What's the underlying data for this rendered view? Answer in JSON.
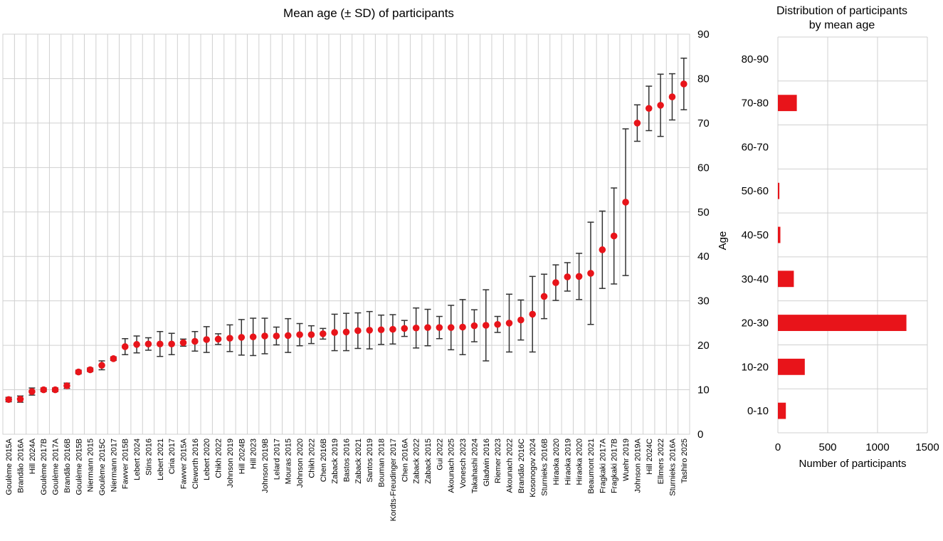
{
  "chart_data": [
    {
      "type": "scatter",
      "title": "Mean age (± SD) of participants",
      "xlabel": "",
      "ylabel": "Age",
      "ylim": [
        0,
        90
      ],
      "yticks": [
        0,
        10,
        20,
        30,
        40,
        50,
        60,
        70,
        80,
        90
      ],
      "grid": true,
      "y_axis_side": "right",
      "marker_color": "#e8141a",
      "errorbar_color": "#333333",
      "categories": [
        "Goulème 2015A",
        "Brandão 2016A",
        "Hill 2024A",
        "Goulème 2017B",
        "Goulème 2017A",
        "Brandão 2016B",
        "Goulème 2015B",
        "Niermann 2015",
        "Goulème 2015C",
        "Niermann 2017",
        "Fawver 2015B",
        "Lebert 2024",
        "Stins 2016",
        "Lebert 2021",
        "Ciria 2017",
        "Fawver 2015A",
        "Cleworth 2016",
        "Lebert 2020",
        "Chikh 2022",
        "Johnson 2019",
        "Hill 2024B",
        "Hill 2023",
        "Johnson 2019B",
        "Lelard 2017",
        "Mouras 2015",
        "Johnson 2020",
        "Chikh 2022",
        "Chen 2016B",
        "Zaback 2019",
        "Bastos 2016",
        "Zaback 2021",
        "Santos 2019",
        "Bouman 2018",
        "Kordts-Freudinger 2017",
        "Chen 2016A",
        "Zaback 2022",
        "Zaback 2015",
        "Gui 2022",
        "Akounach 2025",
        "Vonesch 2023",
        "Takahashi 2024",
        "Gladwin 2016",
        "Riemer 2023",
        "Akounach 2022",
        "Brandão 2016C",
        "Kosonogov 2024",
        "Sturnieks 2016B",
        "Hiraoka 2020",
        "Hiraoka 2019",
        "Hiraoka 2020",
        "Beaumont 2021",
        "Fragkaki 2017A",
        "Fragkaki 2017B",
        "Wuehr 2019",
        "Johnson 2019A",
        "Hill 2024C",
        "Ellmers 2022",
        "Sturnieks 2016A",
        "Tashiro 2025"
      ],
      "means": [
        7.8,
        7.9,
        9.6,
        10.0,
        10.0,
        10.9,
        14.0,
        14.5,
        15.5,
        17.0,
        19.7,
        20.2,
        20.3,
        20.3,
        20.3,
        20.6,
        20.9,
        21.3,
        21.4,
        21.6,
        21.8,
        21.9,
        22.1,
        22.1,
        22.2,
        22.4,
        22.4,
        22.6,
        22.9,
        23.0,
        23.3,
        23.4,
        23.5,
        23.6,
        23.8,
        23.9,
        24.0,
        24.0,
        24.0,
        24.1,
        24.4,
        24.5,
        24.7,
        25.0,
        25.7,
        27.0,
        31.0,
        34.1,
        35.4,
        35.5,
        36.2,
        41.5,
        44.6,
        52.2,
        70.0,
        73.3,
        74.0,
        75.9,
        78.8
      ],
      "sd": [
        0.5,
        0.7,
        0.8,
        0.4,
        0.4,
        0.6,
        0.4,
        0.4,
        1.0,
        0.4,
        1.8,
        1.9,
        1.4,
        2.8,
        2.4,
        0.8,
        2.2,
        2.9,
        1.2,
        3.0,
        4.0,
        4.2,
        4.0,
        2.0,
        3.8,
        2.5,
        2.0,
        1.2,
        4.1,
        4.2,
        4.0,
        4.2,
        3.3,
        3.3,
        1.8,
        4.5,
        4.1,
        2.5,
        5.0,
        6.2,
        3.6,
        8.0,
        1.8,
        6.5,
        4.5,
        8.5,
        5.0,
        4.0,
        3.2,
        5.2,
        11.5,
        8.7,
        10.8,
        16.5,
        4.1,
        5.0,
        7.0,
        5.2,
        5.8
      ]
    },
    {
      "type": "bar",
      "orientation": "horizontal",
      "title": "Distribution of participants by mean age",
      "title_lines": [
        "Distribution of participants",
        "by mean age"
      ],
      "xlabel": "Number  of participants",
      "ylabel": "",
      "xlim": [
        0,
        1500
      ],
      "xticks": [
        0,
        500,
        1000,
        1500
      ],
      "grid": true,
      "bar_color": "#e8141a",
      "categories": [
        "0-10",
        "10-20",
        "20-30",
        "30-40",
        "40-50",
        "50-60",
        "60-70",
        "70-80",
        "80-90"
      ],
      "values": [
        80,
        270,
        1290,
        160,
        25,
        15,
        0,
        190,
        0
      ]
    }
  ]
}
